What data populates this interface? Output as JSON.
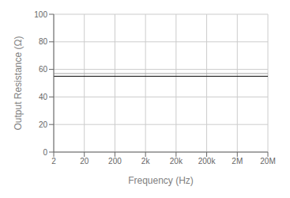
{
  "chart_data": {
    "type": "line",
    "xlabel": "Frequency (Hz)",
    "ylabel": "Output Resistance (Ω)",
    "x": [
      2,
      20000000
    ],
    "series": [
      {
        "color": "#000000",
        "values": [
          55,
          55
        ]
      },
      {
        "color": "#aaaaaa",
        "values": [
          57,
          57
        ]
      }
    ],
    "xlim": [
      2,
      20000000
    ],
    "ylim": [
      0,
      100
    ],
    "xticks": [
      2,
      20,
      200,
      {
        "value": 2000,
        "label": "2k"
      },
      {
        "value": 20000,
        "label": "20k"
      },
      {
        "value": 200000,
        "label": "200k"
      },
      {
        "value": 2000000,
        "label": "2M"
      },
      {
        "value": 20000000,
        "label": "20M"
      }
    ],
    "yticks": [
      0,
      20,
      40,
      60,
      80,
      100
    ],
    "log": "x",
    "grid": true
  }
}
